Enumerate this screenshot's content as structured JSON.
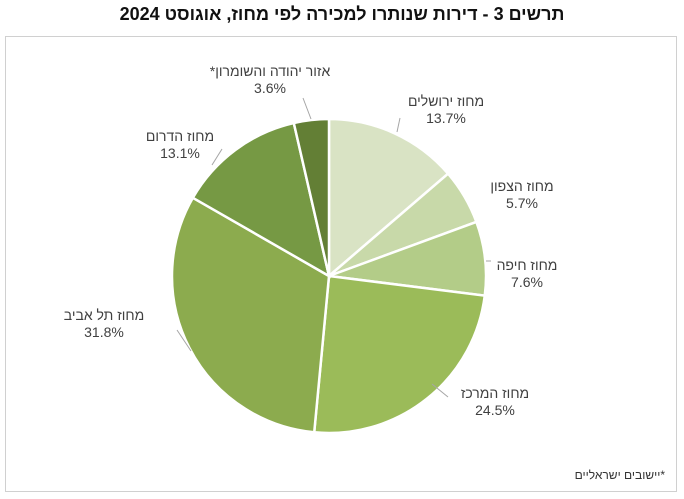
{
  "title": "תרשים 3 - דירות שנותרו למכירה לפי מחוז, אוגוסט 2024",
  "footnote": "*יישובים ישראליים",
  "chart_data": {
    "type": "pie",
    "title": "תרשים 3 - דירות שנותרו למכירה לפי מחוז, אוגוסט 2024",
    "slices": [
      {
        "name": "מחוז ירושלים",
        "value": 13.7,
        "label": "13.7%",
        "color": "#d9e3c4"
      },
      {
        "name": "מחוז הצפון",
        "value": 5.7,
        "label": "5.7%",
        "color": "#c8d9a9"
      },
      {
        "name": "מחוז חיפה",
        "value": 7.6,
        "label": "7.6%",
        "color": "#b3cc88"
      },
      {
        "name": "מחוז המרכז",
        "value": 24.5,
        "label": "24.5%",
        "color": "#9bbb59"
      },
      {
        "name": "מחוז תל אביב",
        "value": 31.8,
        "label": "31.8%",
        "color": "#8cab4e"
      },
      {
        "name": "מחוז הדרום",
        "value": 13.1,
        "label": "13.1%",
        "color": "#769944"
      },
      {
        "name": "אזור יהודה והשומרון*",
        "value": 3.6,
        "label": "3.6%",
        "color": "#637f35"
      }
    ],
    "start_angle": "12 o'clock",
    "direction": "clockwise",
    "legend": "none (data labels with leader lines)"
  }
}
